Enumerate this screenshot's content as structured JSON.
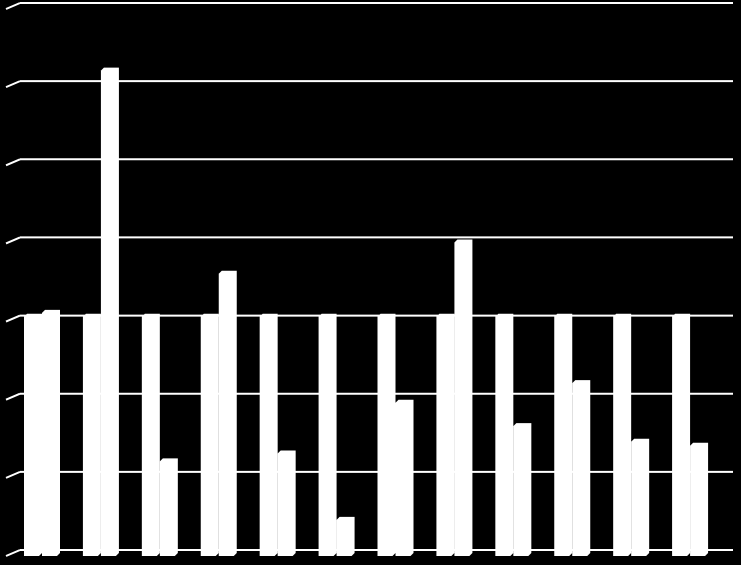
{
  "chart_data": {
    "type": "bar",
    "categories": [
      "",
      "",
      "",
      "",
      "",
      "",
      "",
      "",
      "",
      "",
      "",
      ""
    ],
    "series": [
      {
        "values": [
          3.1,
          3.1,
          3.1,
          3.1,
          3.1,
          3.1,
          3.1,
          3.1,
          3.1,
          3.1,
          3.1,
          3.1
        ]
      },
      {
        "values": [
          3.15,
          6.25,
          1.25,
          3.65,
          1.35,
          0.5,
          2.0,
          4.05,
          1.7,
          2.25,
          1.5,
          1.45
        ]
      }
    ],
    "ylim": [
      0,
      7
    ],
    "grid": true,
    "legend": "none",
    "colors": {
      "background": "#000000",
      "bar": "#ffffff",
      "grid": "#ffffff"
    }
  }
}
